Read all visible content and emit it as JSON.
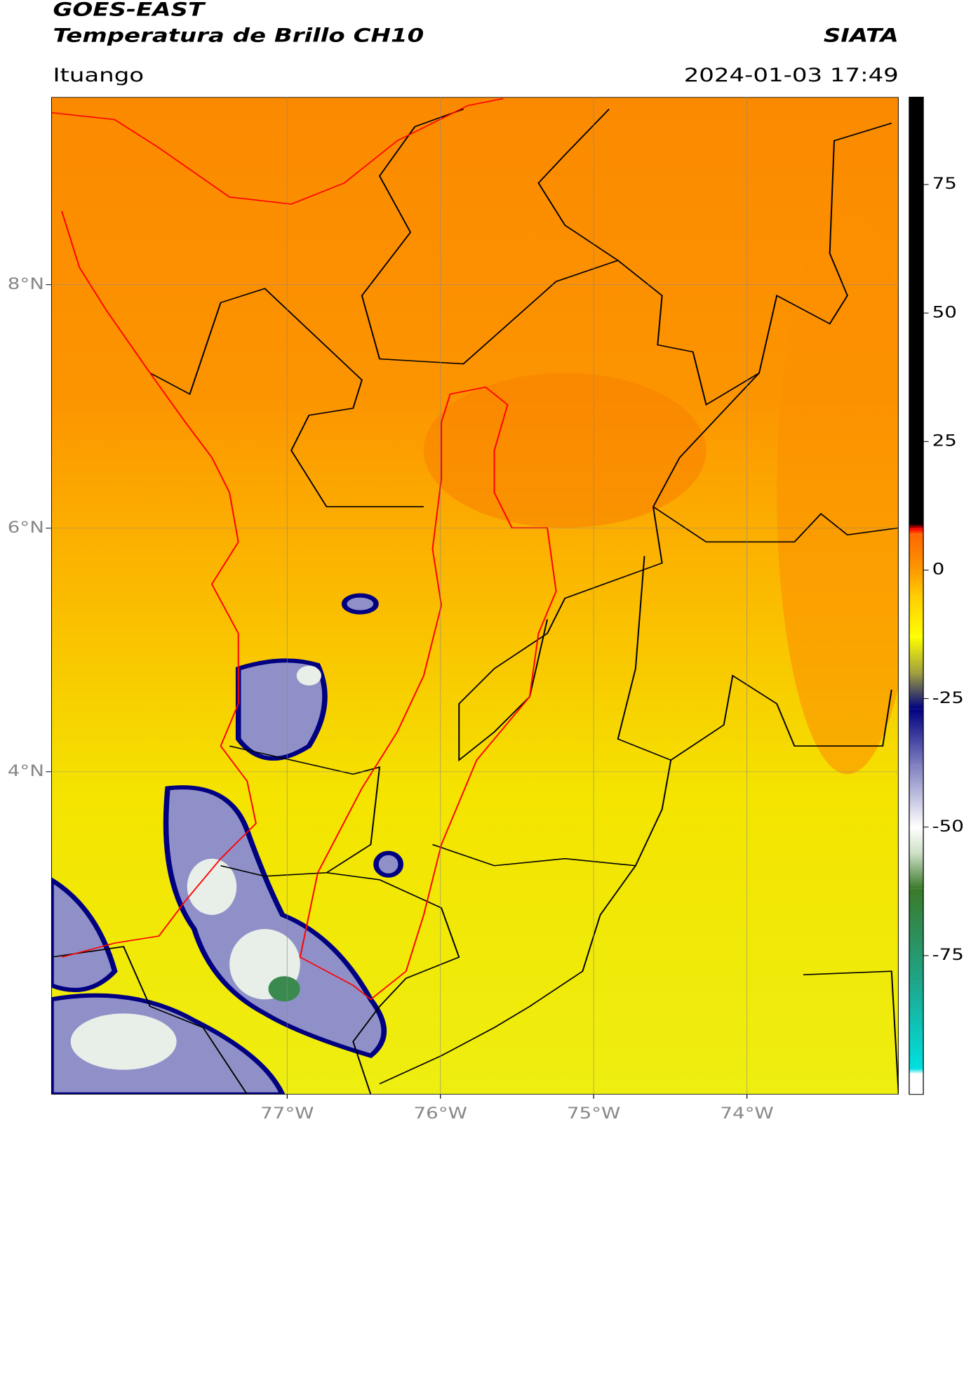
{
  "header": {
    "title": "GOES-EAST",
    "subtitle": "Temperatura de Brillo CH10",
    "brand": "SIATA",
    "location": "Ituango",
    "datetime": "2024-01-03 17:49"
  },
  "map": {
    "xlim": [
      -78.54,
      -73.01
    ],
    "ylim": [
      1.35,
      9.54
    ],
    "xticks": [
      {
        "value": -77,
        "label": "77°W"
      },
      {
        "value": -76,
        "label": "76°W"
      },
      {
        "value": -75,
        "label": "75°W"
      },
      {
        "value": -74,
        "label": "74°W"
      }
    ],
    "yticks": [
      {
        "value": 8,
        "label": "8°N"
      },
      {
        "value": 6,
        "label": "6°N"
      },
      {
        "value": 4,
        "label": "4°N"
      }
    ],
    "grid": true
  },
  "colorbar": {
    "lim": [
      -102,
      92
    ],
    "ticks": [
      75,
      50,
      25,
      0,
      -25,
      -50,
      -75
    ],
    "stops": [
      {
        "value": -102,
        "color": "#ffffff"
      },
      {
        "value": -98,
        "color": "#ffffff"
      },
      {
        "value": -97,
        "color": "#00e0e0"
      },
      {
        "value": -80,
        "color": "#1fa58a"
      },
      {
        "value": -62,
        "color": "#3a7a2a"
      },
      {
        "value": -55,
        "color": "#cfe0c8"
      },
      {
        "value": -50,
        "color": "#ffffff"
      },
      {
        "value": -38,
        "color": "#8080c0"
      },
      {
        "value": -27,
        "color": "#000080"
      },
      {
        "value": -20,
        "color": "#a0a040"
      },
      {
        "value": -13,
        "color": "#ffff00"
      },
      {
        "value": -5,
        "color": "#ffcc00"
      },
      {
        "value": 0,
        "color": "#ff9900"
      },
      {
        "value": 7,
        "color": "#ff6600"
      },
      {
        "value": 8,
        "color": "#ff0000"
      },
      {
        "value": 9,
        "color": "#000000"
      },
      {
        "value": 92,
        "color": "#000000"
      }
    ]
  }
}
